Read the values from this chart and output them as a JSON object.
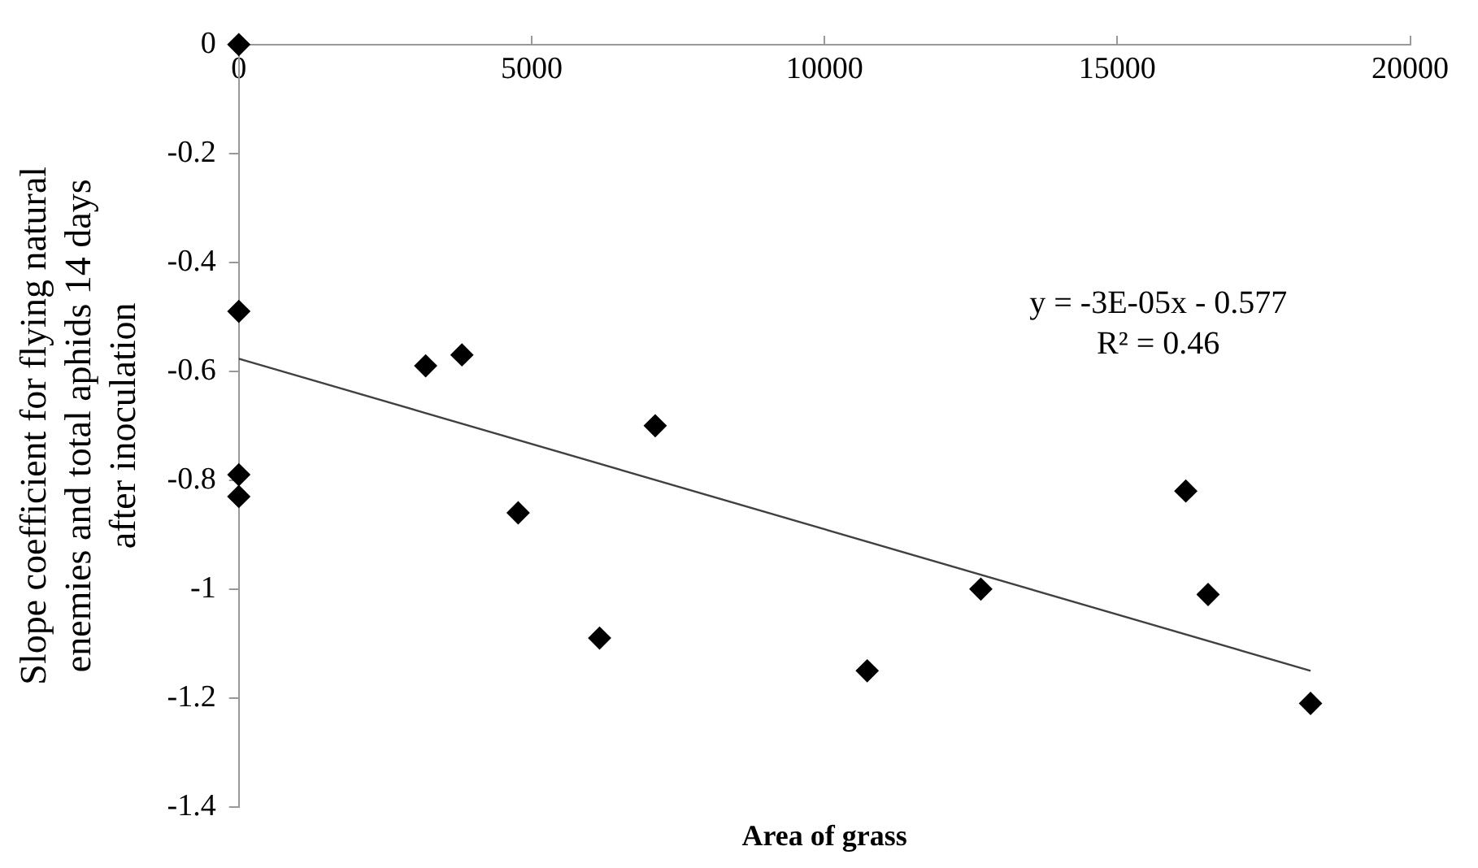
{
  "chart_data": {
    "type": "scatter",
    "xlabel": "Area of grass",
    "ylabel": "Slope coefficient for flying natural enemies and total aphids 14 days after inoculation",
    "xlim": [
      0,
      20000
    ],
    "xticks": [
      0,
      5000,
      10000,
      15000,
      20000
    ],
    "ylim": [
      -1.4,
      0
    ],
    "yticks": [
      -1.4,
      -1.2,
      -1,
      -0.8,
      -0.6,
      -0.4,
      -0.2,
      0
    ],
    "grid": false,
    "legend": false,
    "annotations": [
      "y = -3E-05x - 0.577",
      "R² = 0.46"
    ],
    "series": [
      {
        "type": "scatter",
        "marker": "diamond",
        "color": "#000000",
        "x": [
          0,
          0,
          0,
          0,
          3190,
          3810,
          7110,
          4770,
          6160,
          10730,
          12670,
          16170,
          16550,
          18300
        ],
        "values": [
          0,
          -0.49,
          -0.79,
          -0.83,
          -0.59,
          -0.57,
          -0.7,
          -0.86,
          -1.09,
          -1.15,
          -1,
          -0.82,
          -1.01,
          -1.21
        ]
      },
      {
        "type": "line",
        "marker": "none",
        "color": "#404040",
        "x": [
          0,
          18300
        ],
        "values": [
          -0.577,
          -1.15
        ]
      }
    ]
  }
}
